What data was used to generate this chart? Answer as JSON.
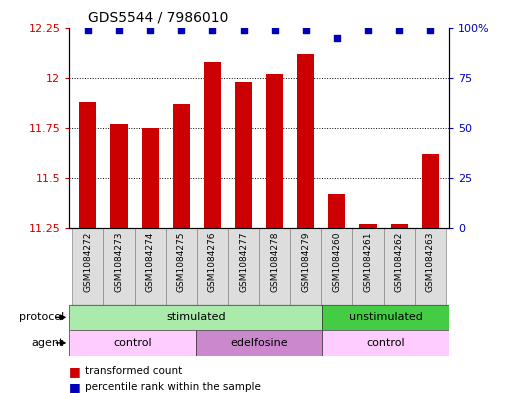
{
  "title": "GDS5544 / 7986010",
  "samples": [
    "GSM1084272",
    "GSM1084273",
    "GSM1084274",
    "GSM1084275",
    "GSM1084276",
    "GSM1084277",
    "GSM1084278",
    "GSM1084279",
    "GSM1084260",
    "GSM1084261",
    "GSM1084262",
    "GSM1084263"
  ],
  "red_values": [
    11.88,
    11.77,
    11.75,
    11.87,
    12.08,
    11.98,
    12.02,
    12.12,
    11.42,
    11.27,
    11.27,
    11.62
  ],
  "blue_values": [
    99,
    99,
    99,
    99,
    99,
    99,
    99,
    99,
    95,
    99,
    99,
    99
  ],
  "ylim_left": [
    11.25,
    12.25
  ],
  "ylim_right": [
    0,
    100
  ],
  "yticks_left": [
    11.25,
    11.5,
    11.75,
    12.0,
    12.25
  ],
  "yticks_right": [
    0,
    25,
    50,
    75,
    100
  ],
  "ytick_labels_left": [
    "11.25",
    "11.5",
    "11.75",
    "12",
    "12.25"
  ],
  "ytick_labels_right": [
    "0",
    "25",
    "50",
    "75",
    "100%"
  ],
  "protocol_groups": [
    {
      "label": "stimulated",
      "start": 0,
      "end": 8,
      "color": "#aaeaaa"
    },
    {
      "label": "unstimulated",
      "start": 8,
      "end": 12,
      "color": "#44cc44"
    }
  ],
  "agent_groups": [
    {
      "label": "control",
      "start": 0,
      "end": 4,
      "color": "#ffccff"
    },
    {
      "label": "edelfosine",
      "start": 4,
      "end": 8,
      "color": "#cc88cc"
    },
    {
      "label": "control",
      "start": 8,
      "end": 12,
      "color": "#ffccff"
    }
  ],
  "bar_color": "#cc0000",
  "dot_color": "#0000bb",
  "bar_width": 0.55,
  "background_color": "#ffffff",
  "axis_label_color_left": "#cc0000",
  "axis_label_color_right": "#0000bb",
  "legend_red_label": "transformed count",
  "legend_blue_label": "percentile rank within the sample",
  "protocol_label": "protocol",
  "agent_label": "agent",
  "sample_box_color": "#dddddd",
  "grid_ticks": [
    11.5,
    11.75,
    12.0
  ]
}
